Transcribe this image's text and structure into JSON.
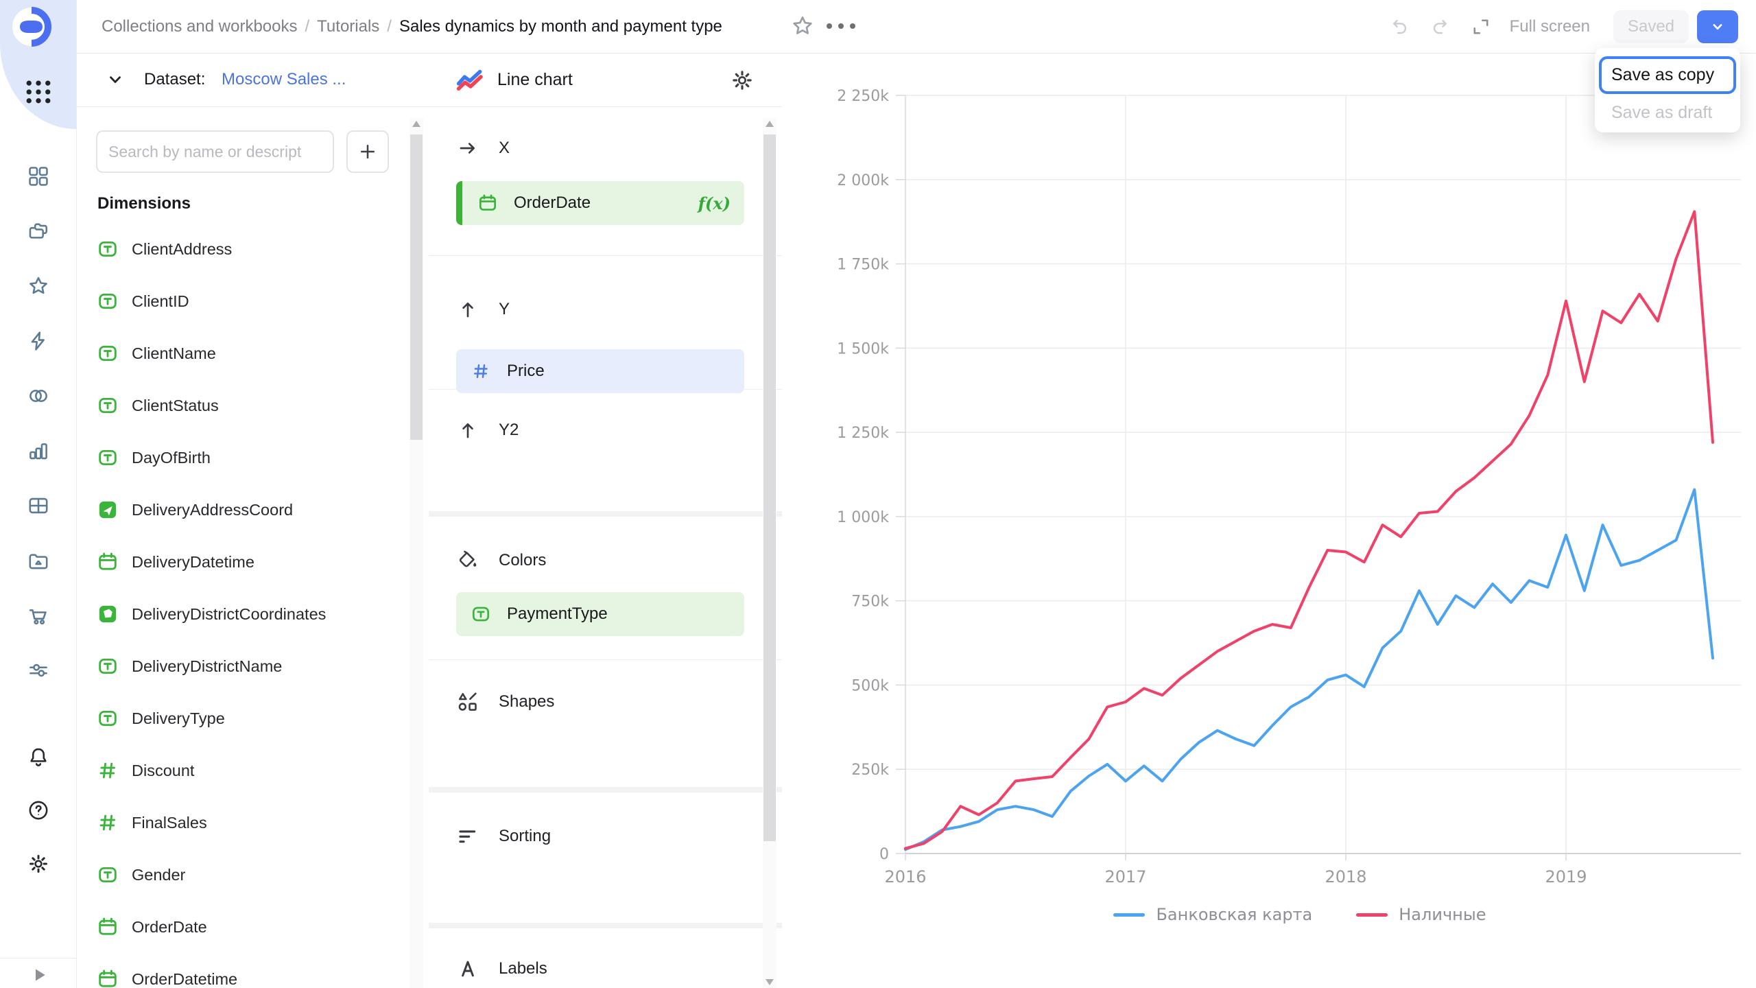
{
  "colors": {
    "accent_blue": "#4E7DF5",
    "dimension_green": "#3BB43B",
    "measure_blue": "#4F7DE8",
    "line_blue": "#4CA3EF",
    "line_red": "#F04168",
    "focus_ring": "#3F82F7"
  },
  "rail": {
    "items": [
      "dashboard",
      "collections",
      "star",
      "lightning",
      "venn",
      "bar-chart",
      "table",
      "media-folder",
      "cart",
      "sliders"
    ],
    "footer_items": [
      "bell",
      "help",
      "gear"
    ]
  },
  "header": {
    "breadcrumbs": [
      "Collections and workbooks",
      "Tutorials",
      "Sales dynamics by month and payment type"
    ],
    "full_screen_label": "Full screen",
    "saved_button": "Saved",
    "menu": {
      "items": [
        {
          "label": "Save as copy",
          "state": "focused"
        },
        {
          "label": "Save as draft",
          "state": "disabled"
        }
      ]
    }
  },
  "dataset_panel": {
    "header_label": "Dataset:",
    "dataset_name": "Moscow Sales ...",
    "search_placeholder": "Search by name or descript",
    "add_button": "+",
    "section_title": "Dimensions",
    "fields": [
      {
        "name": "ClientAddress",
        "type": "text"
      },
      {
        "name": "ClientID",
        "type": "text"
      },
      {
        "name": "ClientName",
        "type": "text"
      },
      {
        "name": "ClientStatus",
        "type": "text"
      },
      {
        "name": "DayOfBirth",
        "type": "text"
      },
      {
        "name": "DeliveryAddressCoord",
        "type": "geopoint"
      },
      {
        "name": "DeliveryDatetime",
        "type": "date"
      },
      {
        "name": "DeliveryDistrictCoordinates",
        "type": "geopolygon"
      },
      {
        "name": "DeliveryDistrictName",
        "type": "text"
      },
      {
        "name": "DeliveryType",
        "type": "text"
      },
      {
        "name": "Discount",
        "type": "number"
      },
      {
        "name": "FinalSales",
        "type": "number"
      },
      {
        "name": "Gender",
        "type": "text"
      },
      {
        "name": "OrderDate",
        "type": "date"
      },
      {
        "name": "OrderDatetime",
        "type": "date"
      }
    ]
  },
  "config_panel": {
    "chart_type": "Line chart",
    "sections": {
      "x": {
        "label": "X",
        "field": {
          "name": "OrderDate",
          "type": "date",
          "formula_badge": "f(x)"
        }
      },
      "y": {
        "label": "Y",
        "field": {
          "name": "Price",
          "type": "number"
        }
      },
      "y2": {
        "label": "Y2"
      },
      "colors": {
        "label": "Colors",
        "field": {
          "name": "PaymentType",
          "type": "text"
        }
      },
      "shapes": {
        "label": "Shapes"
      },
      "sorting": {
        "label": "Sorting"
      },
      "labels": {
        "label": "Labels"
      }
    }
  },
  "chart_data": {
    "type": "line",
    "x": [
      "2016-01",
      "2016-02",
      "2016-03",
      "2016-04",
      "2016-05",
      "2016-06",
      "2016-07",
      "2016-08",
      "2016-09",
      "2016-10",
      "2016-11",
      "2016-12",
      "2017-01",
      "2017-02",
      "2017-03",
      "2017-04",
      "2017-05",
      "2017-06",
      "2017-07",
      "2017-08",
      "2017-09",
      "2017-10",
      "2017-11",
      "2017-12",
      "2018-01",
      "2018-02",
      "2018-03",
      "2018-04",
      "2018-05",
      "2018-06",
      "2018-07",
      "2018-08",
      "2018-09",
      "2018-10",
      "2018-11",
      "2018-12",
      "2019-01",
      "2019-02",
      "2019-03",
      "2019-04",
      "2019-05",
      "2019-06",
      "2019-07",
      "2019-08",
      "2019-09"
    ],
    "series": [
      {
        "name": "Банковская карта",
        "color": "#4CA3EF",
        "values": [
          12000,
          35000,
          70000,
          80000,
          95000,
          130000,
          140000,
          130000,
          110000,
          185000,
          230000,
          265000,
          215000,
          260000,
          215000,
          280000,
          330000,
          365000,
          340000,
          320000,
          380000,
          435000,
          465000,
          515000,
          530000,
          495000,
          610000,
          660000,
          780000,
          680000,
          765000,
          730000,
          800000,
          745000,
          810000,
          790000,
          945000,
          780000,
          975000,
          855000,
          870000,
          900000,
          930000,
          1080000,
          580000
        ]
      },
      {
        "name": "Наличные",
        "color": "#F04168",
        "values": [
          15000,
          30000,
          65000,
          140000,
          115000,
          150000,
          215000,
          222000,
          228000,
          285000,
          340000,
          435000,
          450000,
          490000,
          470000,
          520000,
          560000,
          600000,
          630000,
          660000,
          680000,
          670000,
          790000,
          900000,
          895000,
          865000,
          975000,
          940000,
          1010000,
          1015000,
          1075000,
          1115000,
          1165000,
          1215000,
          1300000,
          1420000,
          1640000,
          1400000,
          1610000,
          1575000,
          1660000,
          1580000,
          1765000,
          1905000,
          1220000
        ]
      }
    ],
    "ylim": [
      0,
      2250000
    ],
    "y_ticks": [
      "2 250k",
      "2 000k",
      "1 750k",
      "1 500k",
      "1 250k",
      "1 000k",
      "750k",
      "500k",
      "250k",
      "0"
    ],
    "x_ticks": [
      "2016",
      "2017",
      "2018",
      "2019"
    ],
    "x_tick_indices": [
      0,
      12,
      24,
      36
    ],
    "grid": "horizontal-250k + vertical-years",
    "legend_position": "bottom-center"
  }
}
